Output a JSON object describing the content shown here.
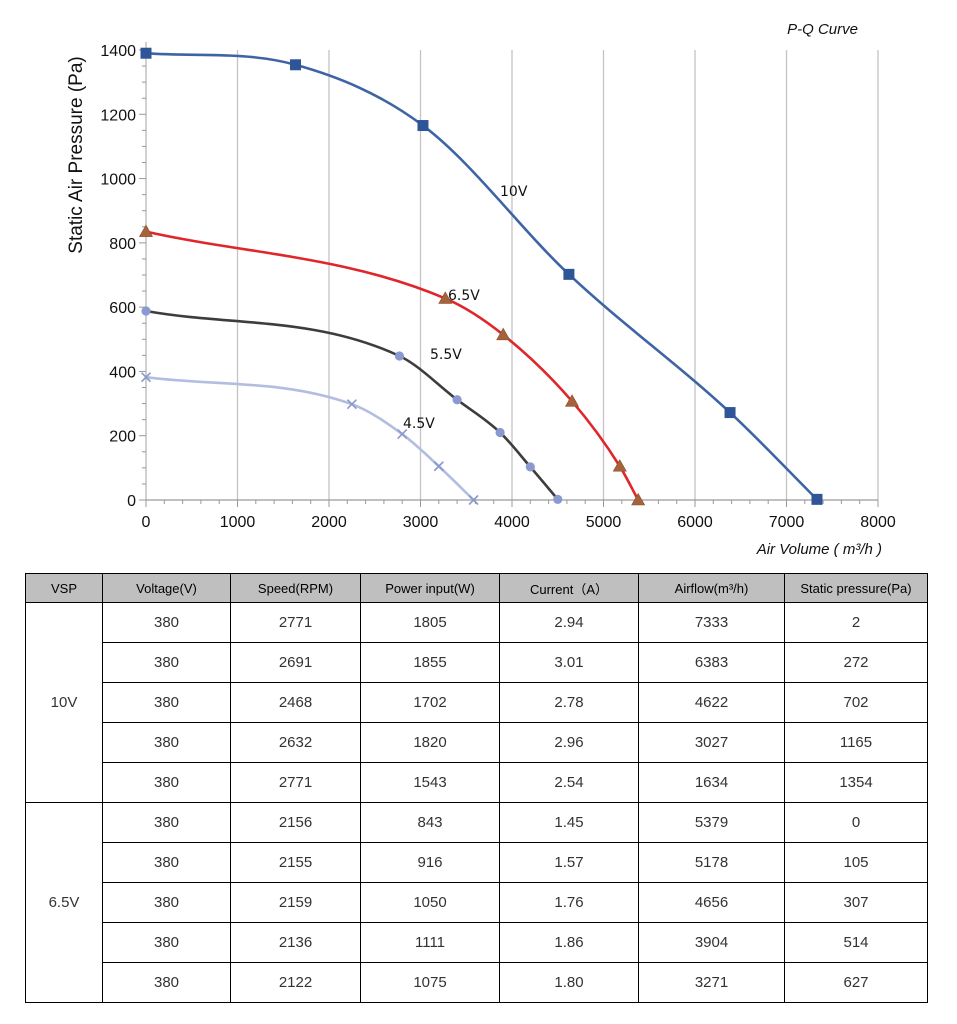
{
  "chart_data": {
    "type": "line",
    "title": "P-Q Curve",
    "xlabel": "Air Volume ( m³/h )",
    "ylabel": "Static Air Pressure  (Pa)",
    "xlim": [
      0,
      8000
    ],
    "ylim": [
      0,
      1400
    ],
    "x_ticks": [
      "0",
      "1000",
      "2000",
      "3000",
      "4000",
      "5000",
      "6000",
      "7000",
      "8000"
    ],
    "y_ticks": [
      "0",
      "200",
      "400",
      "600",
      "800",
      "1000",
      "1200",
      "1400"
    ],
    "grid": "vertical",
    "series": [
      {
        "name": "10V",
        "color": "#3e64a6",
        "marker": "square",
        "marker_color": "#2e5597",
        "points": [
          [
            0,
            1390
          ],
          [
            1634,
            1354
          ],
          [
            3027,
            1165
          ],
          [
            4622,
            702
          ],
          [
            6383,
            272
          ],
          [
            7333,
            2
          ]
        ]
      },
      {
        "name": "6.5V",
        "color": "#e0262a",
        "marker": "triangle",
        "marker_color": "#a6623a",
        "points": [
          [
            0,
            835
          ],
          [
            3271,
            627
          ],
          [
            3904,
            514
          ],
          [
            4656,
            307
          ],
          [
            5178,
            105
          ],
          [
            5379,
            0
          ]
        ]
      },
      {
        "name": "5.5V",
        "color": "#3d3d3d",
        "marker": "circle",
        "marker_color": "#8a9ad1",
        "points": [
          [
            0,
            588
          ],
          [
            2770,
            448
          ],
          [
            3400,
            312
          ],
          [
            3870,
            210
          ],
          [
            4200,
            103
          ],
          [
            4500,
            2
          ]
        ]
      },
      {
        "name": "4.5V",
        "color": "#b3bde0",
        "marker": "x",
        "marker_color": "#8a99cc",
        "points": [
          [
            0,
            382
          ],
          [
            2250,
            298
          ],
          [
            2800,
            205
          ],
          [
            3200,
            105
          ],
          [
            3580,
            0
          ]
        ]
      }
    ]
  },
  "table": {
    "headers": [
      "VSP",
      "Voltage(V)",
      "Speed(RPM)",
      "Power input(W)",
      "Current（A）",
      "Airflow(m³/h)",
      "Static pressure(Pa)"
    ],
    "groups": [
      {
        "vsp": "10V",
        "rows": [
          [
            "380",
            "2771",
            "1805",
            "2.94",
            "7333",
            "2"
          ],
          [
            "380",
            "2691",
            "1855",
            "3.01",
            "6383",
            "272"
          ],
          [
            "380",
            "2468",
            "1702",
            "2.78",
            "4622",
            "702"
          ],
          [
            "380",
            "2632",
            "1820",
            "2.96",
            "3027",
            "1165"
          ],
          [
            "380",
            "2771",
            "1543",
            "2.54",
            "1634",
            "1354"
          ]
        ]
      },
      {
        "vsp": "6.5V",
        "rows": [
          [
            "380",
            "2156",
            "843",
            "1.45",
            "5379",
            "0"
          ],
          [
            "380",
            "2155",
            "916",
            "1.57",
            "5178",
            "105"
          ],
          [
            "380",
            "2159",
            "1050",
            "1.76",
            "4656",
            "307"
          ],
          [
            "380",
            "2136",
            "1111",
            "1.86",
            "3904",
            "514"
          ],
          [
            "380",
            "2122",
            "1075",
            "1.80",
            "3271",
            "627"
          ]
        ]
      }
    ]
  }
}
